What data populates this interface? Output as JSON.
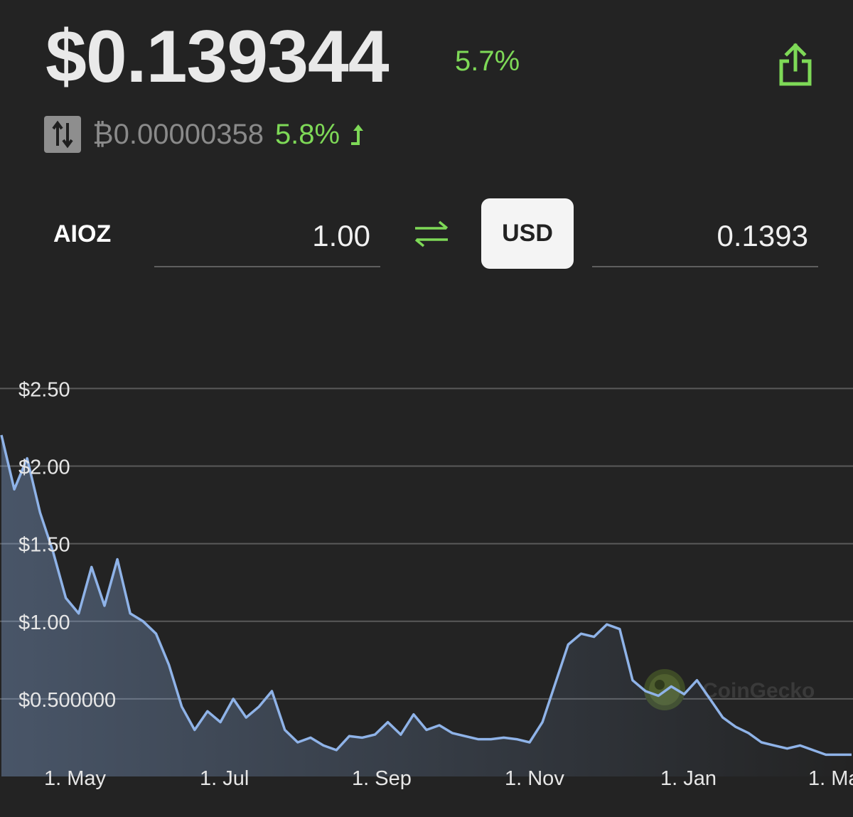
{
  "header": {
    "price": "$0.139344",
    "price_change": "5.7%",
    "btc_price": "₿0.00000358",
    "btc_change": "5.8%"
  },
  "converter": {
    "from_symbol": "AIOZ",
    "from_amount": "1.00",
    "to_currency": "USD",
    "to_amount": "0.1393"
  },
  "colors": {
    "positive": "#7ed957",
    "line": "#8fb3e8",
    "background": "#232323"
  },
  "icons": [
    "share-icon",
    "swap-vertical-icon",
    "up-arrow-icon",
    "exchange-arrows-icon"
  ],
  "watermark": "CoinGecko",
  "chart_data": {
    "type": "line",
    "x_tick_labels": [
      "1. May",
      "1. Jul",
      "1. Sep",
      "1. Nov",
      "1. Jan",
      "1. Ma"
    ],
    "y_tick_labels": [
      "$2.50",
      "$2.00",
      "$1.50",
      "$1.00",
      "$0.500000"
    ],
    "y_ticks": [
      2.5,
      2.0,
      1.5,
      1.0,
      0.5
    ],
    "ylim": [
      0,
      2.85
    ],
    "grid": true,
    "x": [
      "Apr 1",
      "Apr 4",
      "Apr 7",
      "Apr 10",
      "Apr 13",
      "Apr 16",
      "Apr 19",
      "Apr 22",
      "Apr 25",
      "Apr 28",
      "May 1",
      "May 4",
      "May 7",
      "May 10",
      "May 13",
      "May 16",
      "May 19",
      "May 22",
      "May 25",
      "May 28",
      "Jun 1",
      "Jun 5",
      "Jun 10",
      "Jun 15",
      "Jun 20",
      "Jun 25",
      "Jul 1",
      "Jul 8",
      "Jul 15",
      "Jul 22",
      "Jul 29",
      "Aug 5",
      "Aug 12",
      "Aug 19",
      "Aug 26",
      "Sep 1",
      "Sep 8",
      "Sep 15",
      "Sep 22",
      "Sep 29",
      "Oct 6",
      "Oct 13",
      "Oct 20",
      "Oct 27",
      "Nov 1",
      "Nov 4",
      "Nov 7",
      "Nov 10",
      "Nov 14",
      "Nov 18",
      "Nov 22",
      "Nov 26",
      "Dec 1",
      "Dec 6",
      "Dec 12",
      "Dec 18",
      "Dec 24",
      "Dec 30",
      "Jan 6",
      "Jan 14",
      "Jan 22",
      "Jan 30",
      "Feb 7",
      "Feb 15",
      "Feb 22",
      "Mar 1",
      "Mar 4"
    ],
    "values": [
      2.2,
      1.85,
      2.05,
      1.7,
      1.45,
      1.15,
      1.05,
      1.35,
      1.1,
      1.4,
      1.05,
      1.0,
      0.92,
      0.72,
      0.45,
      0.3,
      0.42,
      0.35,
      0.5,
      0.38,
      0.45,
      0.55,
      0.3,
      0.22,
      0.25,
      0.2,
      0.17,
      0.26,
      0.25,
      0.27,
      0.35,
      0.27,
      0.4,
      0.3,
      0.33,
      0.28,
      0.26,
      0.24,
      0.24,
      0.25,
      0.24,
      0.22,
      0.35,
      0.6,
      0.85,
      0.92,
      0.9,
      0.98,
      0.95,
      0.62,
      0.55,
      0.52,
      0.58,
      0.53,
      0.62,
      0.5,
      0.38,
      0.32,
      0.28,
      0.22,
      0.2,
      0.18,
      0.2,
      0.17,
      0.14,
      0.14,
      0.14
    ]
  }
}
